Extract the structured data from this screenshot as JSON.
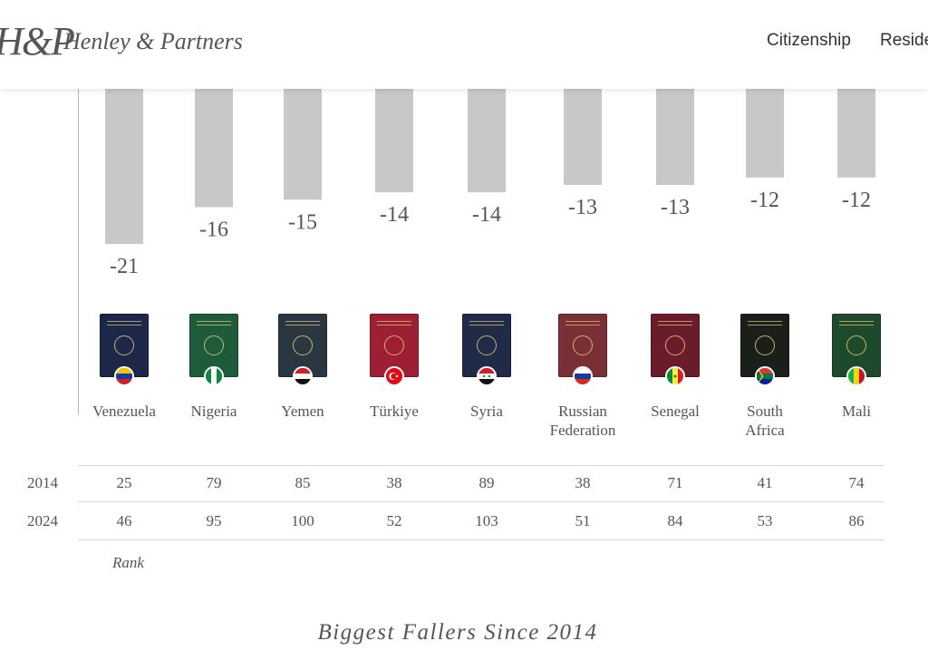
{
  "header": {
    "logo_mark": "H&P",
    "brand": "Henley & Partners",
    "nav": [
      "Citizenship",
      "Reside"
    ]
  },
  "chart_data": {
    "type": "bar",
    "categories": [
      "Venezuela",
      "Nigeria",
      "Yemen",
      "Türkiye",
      "Syria",
      "Russian\nFederation",
      "Senegal",
      "South\nAfrica",
      "Mali"
    ],
    "values": [
      -21,
      -16,
      -15,
      -14,
      -14,
      -13,
      -13,
      -12,
      -12
    ],
    "value_labels": [
      "-21",
      "-16",
      "-15",
      "-14",
      "-14",
      "-13",
      "-13",
      "-12",
      "-12"
    ],
    "bar_color": "#c8c8c8",
    "title": "Biggest Fallers Since 2014"
  },
  "passports": [
    {
      "cover": "#1d2748",
      "flag": "venezuela"
    },
    {
      "cover": "#1e5b3a",
      "flag": "nigeria"
    },
    {
      "cover": "#2b3740",
      "flag": "yemen"
    },
    {
      "cover": "#9c1f33",
      "flag": "turkiye"
    },
    {
      "cover": "#1f2b47",
      "flag": "syria"
    },
    {
      "cover": "#7a2e35",
      "flag": "russia"
    },
    {
      "cover": "#6a1c2b",
      "flag": "senegal"
    },
    {
      "cover": "#1b1f1a",
      "flag": "south-africa"
    },
    {
      "cover": "#1d4a2b",
      "flag": "mali"
    }
  ],
  "rank_table": {
    "label": "Rank",
    "rows": [
      {
        "year": "2014",
        "values": [
          "25",
          "79",
          "85",
          "38",
          "89",
          "38",
          "71",
          "41",
          "74"
        ]
      },
      {
        "year": "2024",
        "values": [
          "46",
          "95",
          "100",
          "52",
          "103",
          "51",
          "84",
          "53",
          "86"
        ]
      }
    ]
  }
}
